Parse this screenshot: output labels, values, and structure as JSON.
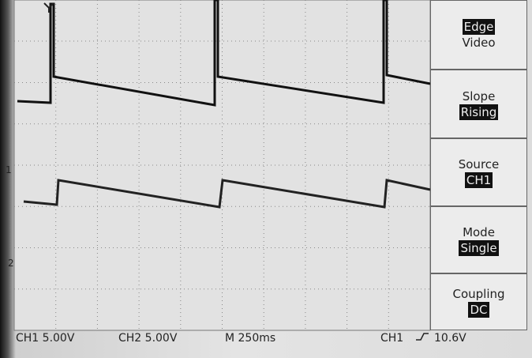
{
  "menu": [
    {
      "options": [
        "Edge",
        "Video"
      ]
    },
    {
      "title": "Slope",
      "value": "Rising"
    },
    {
      "title": "Source",
      "value": "CH1"
    },
    {
      "title": "Mode",
      "value": "Single"
    },
    {
      "title": "Coupling",
      "value": "DC"
    }
  ],
  "markers": {
    "ch1": "1",
    "ch2": "2"
  },
  "status": {
    "ch1_scale": "CH1 5.00V",
    "ch2_scale": "CH2 5.00V",
    "timebase": "M 250ms",
    "trigger_source": "CH1",
    "trigger_level": "10.6V"
  }
}
